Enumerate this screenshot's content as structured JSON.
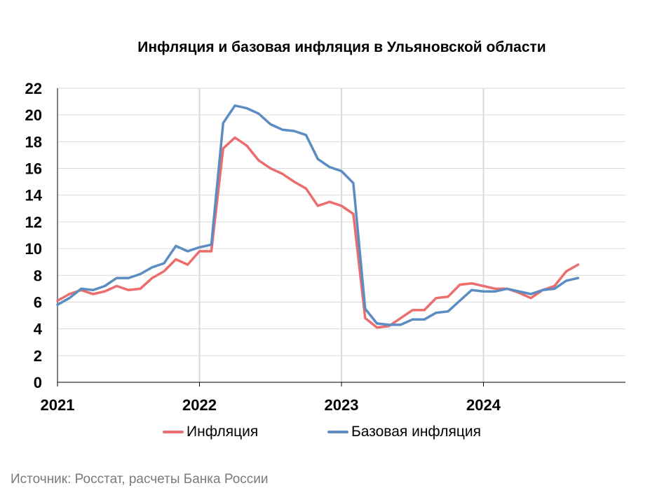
{
  "chart_data": {
    "type": "line",
    "title": "Инфляция и базовая инфляция в Ульяновской области",
    "xlabel": "",
    "ylabel": "",
    "ylim": [
      0,
      22
    ],
    "yticks": [
      0,
      2,
      4,
      6,
      8,
      10,
      12,
      14,
      16,
      18,
      20,
      22
    ],
    "x_tick_labels": [
      "2021",
      "2022",
      "2023",
      "2024"
    ],
    "x_start": "2021-01",
    "x_end": "2025-01",
    "grid": "vertical-and-horizontal",
    "legend_position": "bottom",
    "x": [
      "2021-01",
      "2021-02",
      "2021-03",
      "2021-04",
      "2021-05",
      "2021-06",
      "2021-07",
      "2021-08",
      "2021-09",
      "2021-10",
      "2021-11",
      "2021-12",
      "2022-01",
      "2022-02",
      "2022-03",
      "2022-04",
      "2022-05",
      "2022-06",
      "2022-07",
      "2022-08",
      "2022-09",
      "2022-10",
      "2022-11",
      "2022-12",
      "2023-01",
      "2023-02",
      "2023-03",
      "2023-04",
      "2023-05",
      "2023-06",
      "2023-07",
      "2023-08",
      "2023-09",
      "2023-10",
      "2023-11",
      "2023-12",
      "2024-01",
      "2024-02",
      "2024-03",
      "2024-04",
      "2024-05",
      "2024-06",
      "2024-07",
      "2024-08",
      "2024-09"
    ],
    "series": [
      {
        "name": "Инфляция",
        "color": "#ec6d6d",
        "values": [
          6.1,
          6.6,
          6.9,
          6.6,
          6.8,
          7.2,
          6.9,
          7.0,
          7.8,
          8.3,
          9.2,
          8.8,
          9.8,
          9.8,
          17.5,
          18.3,
          17.7,
          16.6,
          16.0,
          15.6,
          15.0,
          14.5,
          13.2,
          13.5,
          13.2,
          12.6,
          4.8,
          4.1,
          4.2,
          4.8,
          5.4,
          5.4,
          6.3,
          6.4,
          7.3,
          7.4,
          7.2,
          7.0,
          7.0,
          6.7,
          6.3,
          6.9,
          7.2,
          8.3,
          8.8
        ]
      },
      {
        "name": "Базовая инфляция",
        "color": "#5b8cc2",
        "values": [
          5.8,
          6.3,
          7.0,
          6.9,
          7.2,
          7.8,
          7.8,
          8.1,
          8.6,
          8.9,
          10.2,
          9.8,
          10.1,
          10.3,
          19.4,
          20.7,
          20.5,
          20.1,
          19.3,
          18.9,
          18.8,
          18.5,
          16.7,
          16.1,
          15.8,
          14.9,
          5.5,
          4.4,
          4.3,
          4.3,
          4.7,
          4.7,
          5.2,
          5.3,
          6.1,
          6.9,
          6.8,
          6.8,
          7.0,
          6.8,
          6.6,
          6.9,
          7.0,
          7.6,
          7.8
        ]
      }
    ]
  },
  "source_text": "Источник: Росстат, расчеты Банка России"
}
